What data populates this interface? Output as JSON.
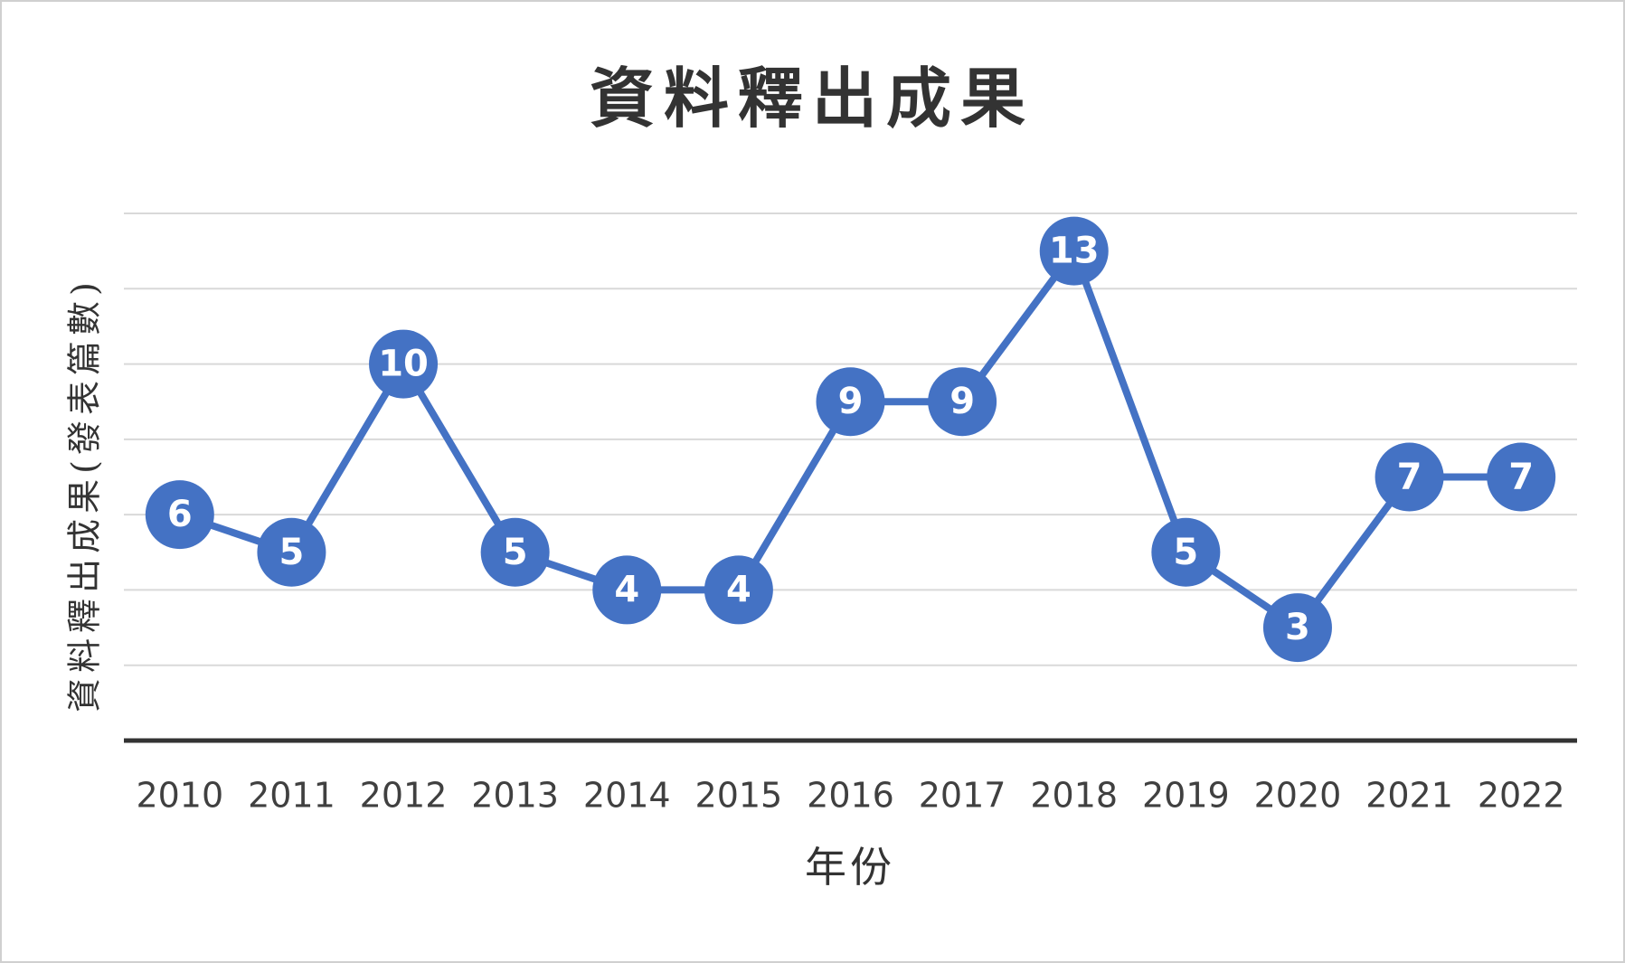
{
  "chart_data": {
    "type": "line",
    "title": "資料釋出成果",
    "x_label": "年份",
    "y_label": "資料釋出成果(發表篇數)",
    "categories": [
      "2010",
      "2011",
      "2012",
      "2013",
      "2014",
      "2015",
      "2016",
      "2017",
      "2018",
      "2019",
      "2020",
      "2021",
      "2022"
    ],
    "series": [
      {
        "name": "資料釋出成果",
        "color": "#4472c4",
        "values": [
          6,
          5,
          10,
          5,
          4,
          4,
          9,
          9,
          13,
          5,
          3,
          7,
          7
        ]
      }
    ],
    "ylim": [
      0,
      14
    ],
    "yticks": [
      0,
      2,
      4,
      6,
      8,
      10,
      12,
      14
    ],
    "grid": true,
    "data_labels": true
  }
}
